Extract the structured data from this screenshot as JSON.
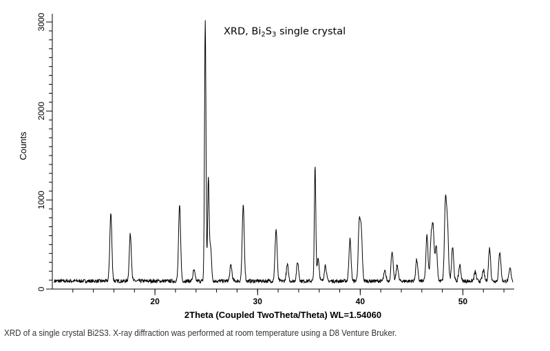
{
  "chart_data": {
    "type": "line",
    "title": "XRD, Bi₂S₃ single crystal",
    "xlabel": "2Theta (Coupled TwoTheta/Theta) WL=1.54060",
    "ylabel": "Counts",
    "xlim": [
      10,
      55
    ],
    "ylim": [
      0,
      3000
    ],
    "x_ticks": [
      20,
      30,
      40,
      50
    ],
    "y_ticks": [
      0,
      1000,
      2000,
      3000
    ],
    "grid": false,
    "baseline_counts": 90,
    "peaks": [
      {
        "x": 15.7,
        "y": 850
      },
      {
        "x": 17.6,
        "y": 620
      },
      {
        "x": 22.4,
        "y": 940
      },
      {
        "x": 23.8,
        "y": 210
      },
      {
        "x": 24.9,
        "y": 3020
      },
      {
        "x": 25.2,
        "y": 1210
      },
      {
        "x": 25.4,
        "y": 500
      },
      {
        "x": 27.4,
        "y": 270
      },
      {
        "x": 28.6,
        "y": 935
      },
      {
        "x": 31.8,
        "y": 670
      },
      {
        "x": 32.9,
        "y": 270
      },
      {
        "x": 33.9,
        "y": 300
      },
      {
        "x": 35.6,
        "y": 1370
      },
      {
        "x": 35.9,
        "y": 350
      },
      {
        "x": 36.6,
        "y": 270
      },
      {
        "x": 39.0,
        "y": 560
      },
      {
        "x": 39.9,
        "y": 700
      },
      {
        "x": 40.1,
        "y": 620
      },
      {
        "x": 42.4,
        "y": 200
      },
      {
        "x": 43.1,
        "y": 425
      },
      {
        "x": 43.6,
        "y": 270
      },
      {
        "x": 45.5,
        "y": 330
      },
      {
        "x": 46.5,
        "y": 600
      },
      {
        "x": 46.9,
        "y": 540
      },
      {
        "x": 47.1,
        "y": 670
      },
      {
        "x": 47.4,
        "y": 480
      },
      {
        "x": 48.3,
        "y": 960
      },
      {
        "x": 48.5,
        "y": 660
      },
      {
        "x": 49.0,
        "y": 480
      },
      {
        "x": 49.7,
        "y": 270
      },
      {
        "x": 51.2,
        "y": 190
      },
      {
        "x": 52.0,
        "y": 210
      },
      {
        "x": 52.6,
        "y": 460
      },
      {
        "x": 53.6,
        "y": 420
      },
      {
        "x": 54.6,
        "y": 230
      }
    ],
    "line_color": "#000000"
  },
  "caption": "XRD of a single crystal Bi2S3. X-ray diffraction was performed at room temperature using a D8 Venture Bruker."
}
